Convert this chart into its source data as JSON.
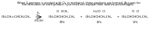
{
  "title_line1": "When 2-pentene is treated with Cl₂ in methanol, three products are formed. Account for",
  "title_line2": "the formation of each product (you need not explain their relative percentages).",
  "reactant": "CH₃CH=CHCH₂CH₃",
  "arrow_top": "Cl₂",
  "arrow_bot": "CH₃OH",
  "p1_top1": "Cl  OCH₃",
  "p1_body": "CH₃CHCHCH₂CH₃",
  "p1_pct": "50%",
  "p2_top1": "H₃CO  Cl",
  "p2_body": "CH₃CHCHCH₂CH₃",
  "p2_pct": "35%",
  "p3_top1": "Cl  Cl",
  "p3_body": "CH₃CHCHCH₂CH₃",
  "p3_pct": "15%",
  "bg": "#ffffff",
  "fg": "#000000",
  "fs_title": 2.5,
  "fs_body": 3.0,
  "fs_small": 2.4
}
